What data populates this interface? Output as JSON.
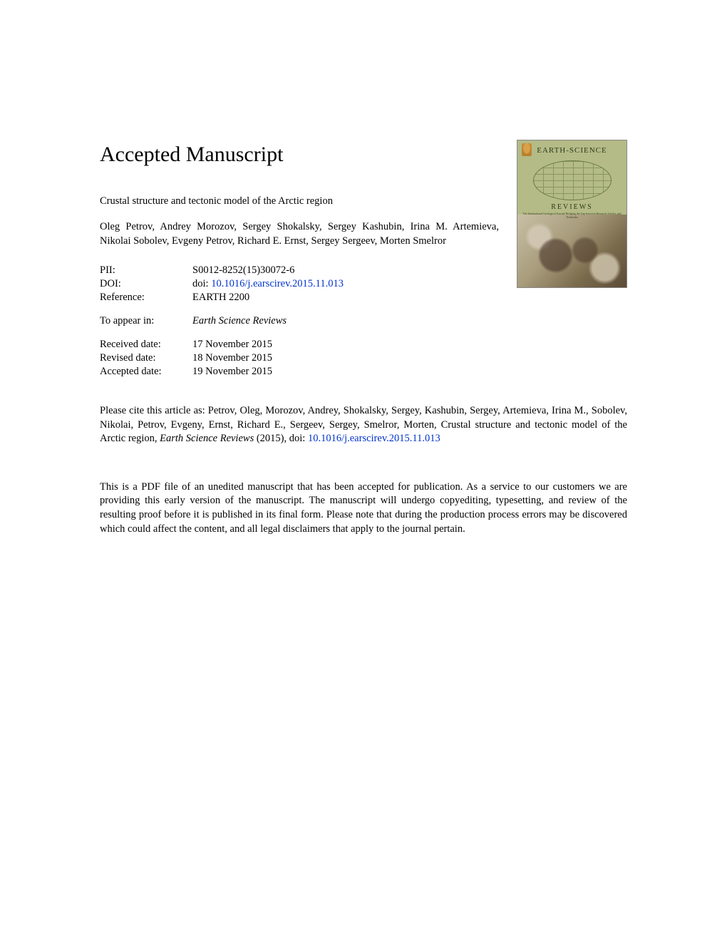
{
  "heading": "Accepted Manuscript",
  "article_title": "Crustal structure and tectonic model of the Arctic region",
  "authors": "Oleg Petrov, Andrey Morozov, Sergey Shokalsky, Sergey Kashubin, Irina M. Artemieva, Nikolai Sobolev, Evgeny Petrov, Richard E. Ernst, Sergey Sergeev, Morten Smelror",
  "meta": {
    "pii_label": "PII:",
    "pii_value": "S0012-8252(15)30072-6",
    "doi_label": "DOI:",
    "doi_prefix": "doi: ",
    "doi_link": "10.1016/j.earscirev.2015.11.013",
    "reference_label": "Reference:",
    "reference_value": "EARTH 2200",
    "appear_label": "To appear in:",
    "appear_value": "Earth Science Reviews",
    "received_label": "Received date:",
    "received_value": "17 November 2015",
    "revised_label": "Revised date:",
    "revised_value": "18 November 2015",
    "accepted_label": "Accepted date:",
    "accepted_value": "19 November 2015"
  },
  "citation": {
    "prefix": "Please cite this article as: Petrov, Oleg, Morozov, Andrey, Shokalsky, Sergey, Kashubin, Sergey, Artemieva, Irina M., Sobolev, Nikolai, Petrov, Evgeny, Ernst, Richard E., Sergeev, Sergey, Smelror, Morten, Crustal structure and tectonic model of the Arctic region, ",
    "journal": "Earth Science Reviews",
    "year": " (2015), doi: ",
    "doi_link": "10.1016/j.earscirev.2015.11.013"
  },
  "disclaimer": "This is a PDF file of an unedited manuscript that has been accepted for publication. As a service to our customers we are providing this early version of the manuscript. The manuscript will undergo copyediting, typesetting, and review of the resulting proof before it is published in its final form. Please note that during the production process errors may be discovered which could affect the content, and all legal disclaimers that apply to the journal pertain.",
  "cover": {
    "journal_name": "EARTH-SCIENCE",
    "reviews": "REVIEWS",
    "subtitle": "The International Geological Journal Bridging the Gap between Research Articles and Textbooks"
  },
  "colors": {
    "link": "#0033cc",
    "text": "#000000",
    "background": "#ffffff",
    "cover_bg": "#b4bb87"
  }
}
